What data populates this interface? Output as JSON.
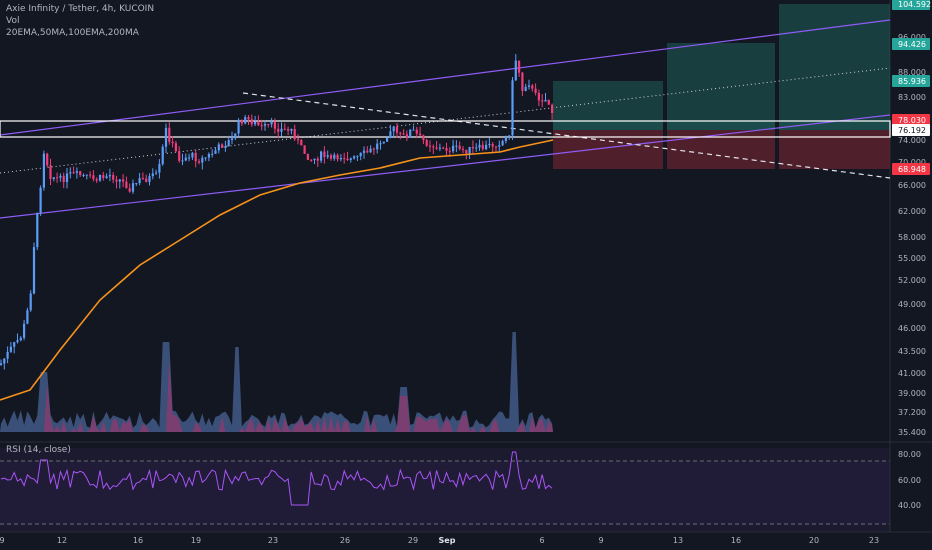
{
  "legend": {
    "symbol": "Axie Infinity / Tether, 4h, KUCOIN",
    "vol": "Vol",
    "mas": "20EMA,50MA,100EMA,200MA"
  },
  "rsi_label": "RSI (14, close)",
  "colors": {
    "background": "#131722",
    "bull": "#5b9cf6",
    "bear": "#f23d7a",
    "ma": "#f7931a",
    "channel": "#8f5cf6",
    "rsi": "#a855f7",
    "target": "#1f5f5a",
    "stop": "#6b2330"
  },
  "chart_data": {
    "type": "candlestick",
    "price_axis_ticks": [
      "104.592",
      "96.000",
      "94.426",
      "88.000",
      "85.936",
      "83.000",
      "78.030",
      "76.192",
      "74.000",
      "70.000",
      "68.948",
      "66.000",
      "62.000",
      "58.000",
      "55.000",
      "52.000",
      "49.000",
      "46.000",
      "43.500",
      "41.000",
      "39.000",
      "37.200",
      "35.400"
    ],
    "price_labels": [
      {
        "value": "104.592",
        "color": "#26a69a"
      },
      {
        "value": "94.426",
        "color": "#26a69a"
      },
      {
        "value": "85.936",
        "color": "#26a69a"
      },
      {
        "value": "78.030",
        "color": "#f23645"
      },
      {
        "value": "76.192",
        "color": "#ffffff"
      },
      {
        "value": "68.948",
        "color": "#f23645"
      }
    ],
    "time_axis_ticks": [
      "9",
      "12",
      "16",
      "19",
      "23",
      "26",
      "29",
      "Sep",
      "6",
      "9",
      "13",
      "16",
      "20",
      "23"
    ],
    "rsi_axis_ticks": [
      "80.00",
      "60.00",
      "40.00"
    ],
    "price_range": [
      35.4,
      104.592
    ],
    "rsi_range": [
      20,
      90
    ],
    "support_levels": [
      76.192,
      78.03
    ],
    "target_levels": [
      85.936,
      94.426,
      104.592
    ],
    "stop_level": 68.948
  }
}
